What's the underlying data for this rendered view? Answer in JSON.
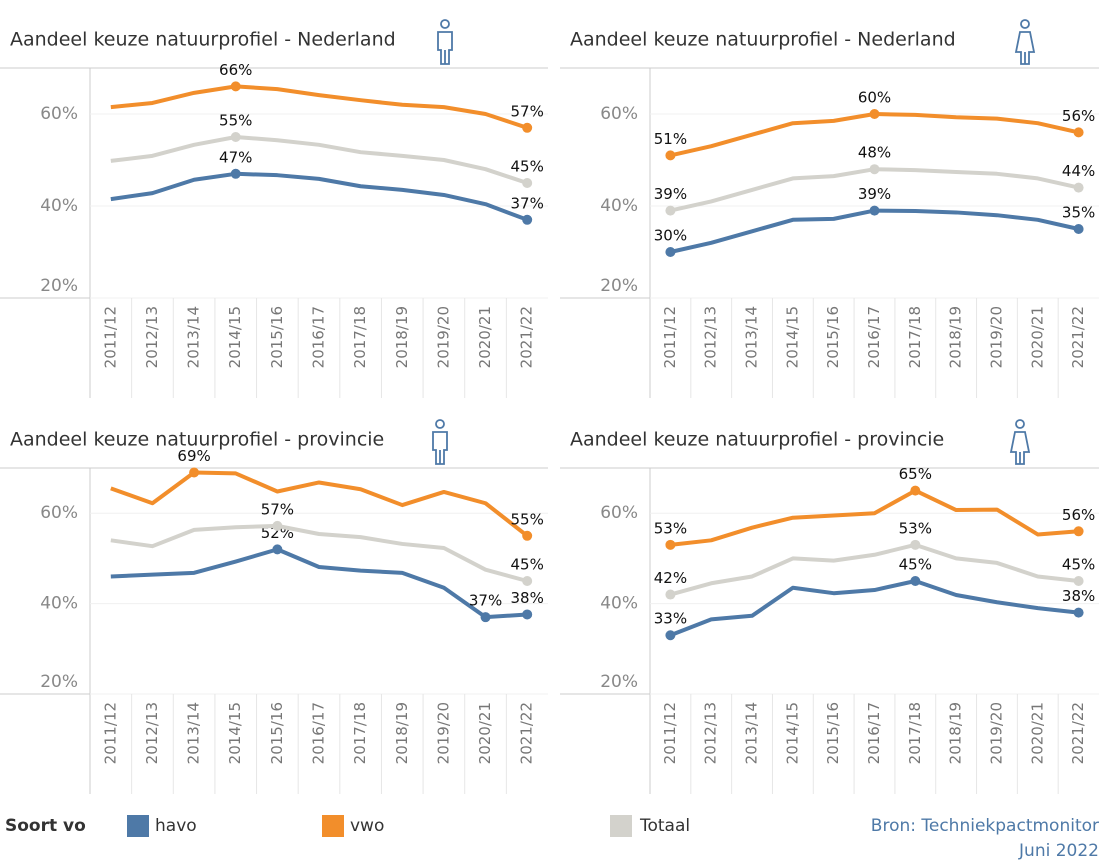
{
  "chart_data": [
    {
      "type": "line",
      "title": "Aandeel keuze natuurprofiel - Nederland",
      "categories": [
        "2011/12",
        "2012/13",
        "2013/14",
        "2014/15",
        "2015/16",
        "2016/17",
        "2017/18",
        "2018/19",
        "2019/20",
        "2020/21",
        "2021/22"
      ],
      "series": [
        {
          "name": "havo",
          "color": "#4e79a7",
          "values": [
            41.5,
            42.8,
            45.7,
            47,
            46.7,
            45.9,
            44.3,
            43.5,
            42.4,
            40.4,
            37
          ],
          "value_labels": [
            null,
            null,
            null,
            "47%",
            null,
            null,
            null,
            null,
            null,
            null,
            "37%"
          ]
        },
        {
          "name": "vwo",
          "color": "#f28e2b",
          "values": [
            61.5,
            62.4,
            64.6,
            66,
            65.4,
            64.1,
            63,
            62,
            61.5,
            60,
            57
          ],
          "value_labels": [
            null,
            null,
            null,
            "66%",
            null,
            null,
            null,
            null,
            null,
            null,
            "57%"
          ]
        },
        {
          "name": "Totaal",
          "color": "#d3d2cc",
          "values": [
            49.8,
            50.9,
            53.3,
            55,
            54.3,
            53.3,
            51.7,
            50.9,
            50,
            48,
            45
          ],
          "value_labels": [
            null,
            null,
            null,
            "55%",
            null,
            null,
            null,
            null,
            null,
            null,
            "45%"
          ]
        }
      ],
      "ylim": [
        20,
        70
      ],
      "yticks": [
        {
          "value": 20,
          "label": "20%"
        },
        {
          "value": 40,
          "label": "40%"
        },
        {
          "value": 60,
          "label": "60%"
        }
      ],
      "grid": true
    },
    {
      "type": "line",
      "title": "Aandeel keuze natuurprofiel - Nederland",
      "categories": [
        "2011/12",
        "2012/13",
        "2013/14",
        "2014/15",
        "2015/16",
        "2016/17",
        "2017/18",
        "2018/19",
        "2019/20",
        "2020/21",
        "2021/22"
      ],
      "series": [
        {
          "name": "havo",
          "color": "#4e79a7",
          "values": [
            30,
            32,
            34.5,
            37,
            37.2,
            39,
            38.9,
            38.6,
            38,
            37,
            35
          ],
          "value_labels": [
            "30%",
            null,
            null,
            null,
            null,
            "39%",
            null,
            null,
            null,
            null,
            "35%"
          ]
        },
        {
          "name": "vwo",
          "color": "#f28e2b",
          "values": [
            51,
            53,
            55.5,
            58,
            58.5,
            60,
            59.8,
            59.3,
            59,
            58,
            56
          ],
          "value_labels": [
            "51%",
            null,
            null,
            null,
            null,
            "60%",
            null,
            null,
            null,
            null,
            "56%"
          ]
        },
        {
          "name": "Totaal",
          "color": "#d3d2cc",
          "values": [
            39,
            41,
            43.5,
            46,
            46.5,
            48,
            47.8,
            47.4,
            47,
            46,
            44
          ],
          "value_labels": [
            "39%",
            null,
            null,
            null,
            null,
            "48%",
            null,
            null,
            null,
            null,
            "44%"
          ]
        }
      ],
      "ylim": [
        20,
        70
      ],
      "yticks": [
        {
          "value": 20,
          "label": "20%"
        },
        {
          "value": 40,
          "label": "40%"
        },
        {
          "value": 60,
          "label": "60%"
        }
      ],
      "grid": true
    },
    {
      "type": "line",
      "title": "Aandeel keuze natuurprofiel - provincie",
      "categories": [
        "2011/12",
        "2012/13",
        "2013/14",
        "2014/15",
        "2015/16",
        "2016/17",
        "2017/18",
        "2018/19",
        "2019/20",
        "2020/21",
        "2021/22"
      ],
      "series": [
        {
          "name": "havo",
          "color": "#4e79a7",
          "values": [
            46,
            46.4,
            46.8,
            49.3,
            52,
            48.1,
            47.3,
            46.8,
            43.5,
            37,
            37.6
          ],
          "value_labels": [
            null,
            null,
            null,
            null,
            "52%",
            null,
            null,
            null,
            null,
            "37%",
            "38%"
          ]
        },
        {
          "name": "vwo",
          "color": "#f28e2b",
          "values": [
            65.5,
            62.2,
            69,
            68.8,
            64.8,
            66.8,
            65.3,
            61.8,
            64.7,
            62.2,
            55
          ],
          "value_labels": [
            null,
            null,
            "69%",
            null,
            null,
            null,
            null,
            null,
            null,
            null,
            "55%"
          ]
        },
        {
          "name": "Totaal",
          "color": "#d3d2cc",
          "values": [
            54,
            52.7,
            56.3,
            56.9,
            57.2,
            55.4,
            54.7,
            53.2,
            52.3,
            47.5,
            45
          ],
          "value_labels": [
            null,
            null,
            null,
            null,
            "57%",
            null,
            null,
            null,
            null,
            null,
            "45%"
          ]
        }
      ],
      "ylim": [
        20,
        70
      ],
      "yticks": [
        {
          "value": 20,
          "label": "20%"
        },
        {
          "value": 40,
          "label": "40%"
        },
        {
          "value": 60,
          "label": "60%"
        }
      ],
      "grid": true
    },
    {
      "type": "line",
      "title": "Aandeel keuze natuurprofiel - provincie",
      "categories": [
        "2011/12",
        "2012/13",
        "2013/14",
        "2014/15",
        "2015/16",
        "2016/17",
        "2017/18",
        "2018/19",
        "2019/20",
        "2020/21",
        "2021/22"
      ],
      "series": [
        {
          "name": "havo",
          "color": "#4e79a7",
          "values": [
            33,
            36.5,
            37.3,
            43.5,
            42.3,
            43,
            45,
            41.9,
            40.3,
            39,
            38
          ],
          "value_labels": [
            "33%",
            null,
            null,
            null,
            null,
            null,
            "45%",
            null,
            null,
            null,
            "38%"
          ]
        },
        {
          "name": "vwo",
          "color": "#f28e2b",
          "values": [
            53,
            54,
            56.8,
            59,
            59.5,
            60,
            65,
            60.7,
            60.8,
            55.3,
            56
          ],
          "value_labels": [
            "53%",
            null,
            null,
            null,
            null,
            null,
            "65%",
            null,
            null,
            null,
            "56%"
          ]
        },
        {
          "name": "Totaal",
          "color": "#d3d2cc",
          "values": [
            42,
            44.5,
            46,
            50,
            49.5,
            50.8,
            53,
            50,
            49,
            46,
            45
          ],
          "value_labels": [
            "42%",
            null,
            null,
            null,
            null,
            null,
            "53%",
            null,
            null,
            null,
            "45%"
          ]
        }
      ],
      "ylim": [
        20,
        70
      ],
      "yticks": [
        {
          "value": 20,
          "label": "20%"
        },
        {
          "value": 40,
          "label": "40%"
        },
        {
          "value": 60,
          "label": "60%"
        }
      ],
      "grid": true
    }
  ],
  "legend_title": "Soort vo",
  "source": [
    "Bron: Techniekpactmonitor",
    "Juni 2022"
  ]
}
